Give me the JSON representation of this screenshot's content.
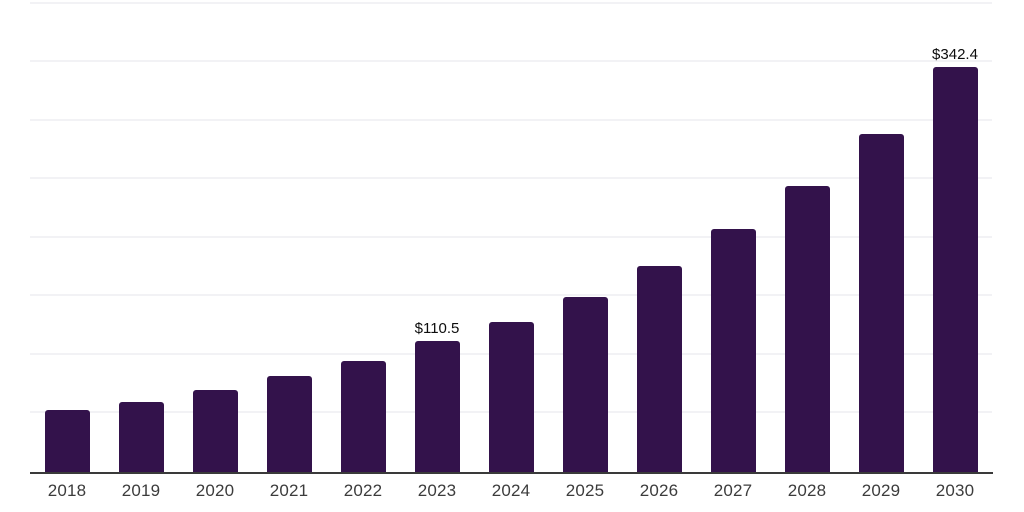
{
  "chart_data": {
    "type": "bar",
    "categories": [
      "2018",
      "2019",
      "2020",
      "2021",
      "2022",
      "2023",
      "2024",
      "2025",
      "2026",
      "2027",
      "2028",
      "2029",
      "2030"
    ],
    "values": [
      52.4,
      59.6,
      69.3,
      81.6,
      93.8,
      110.5,
      126.8,
      147.9,
      174.2,
      205.4,
      241.8,
      285.7,
      342.4
    ],
    "value_labels": [
      "",
      "",
      "",
      "",
      "",
      "$110.5",
      "",
      "",
      "",
      "",
      "",
      "",
      "$342.4"
    ],
    "title": "",
    "xlabel": "",
    "ylabel": "",
    "ylim": [
      0,
      395.7
    ],
    "gridline_interval_units": 49.5,
    "grid": "horizontal",
    "legend": "none",
    "colors": {
      "bar": "#33124b",
      "axis": "#3a3a3a",
      "gridline": "#f2f2f5",
      "tick_label": "#3c3c3c",
      "value_label": "#0d0d0d",
      "background": "#ffffff"
    }
  }
}
